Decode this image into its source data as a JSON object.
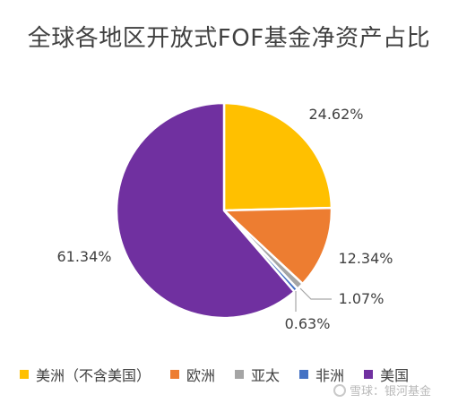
{
  "chart_data": {
    "type": "pie",
    "title": "全球各地区开放式FOF基金净资产占比",
    "slices": [
      {
        "name": "美洲（不含美国）",
        "value": 24.62,
        "label": "24.62%",
        "color": "#FFC000"
      },
      {
        "name": "欧洲",
        "value": 12.34,
        "label": "12.34%",
        "color": "#ED7D31"
      },
      {
        "name": "亚太",
        "value": 1.07,
        "label": "1.07%",
        "color": "#A5A5A5"
      },
      {
        "name": "非洲",
        "value": 0.63,
        "label": "0.63%",
        "color": "#4472C4"
      },
      {
        "name": "美国",
        "value": 61.34,
        "label": "61.34%",
        "color": "#7030A0"
      }
    ],
    "legend_position": "bottom"
  },
  "watermark": {
    "text": "雪球：银河基金"
  }
}
